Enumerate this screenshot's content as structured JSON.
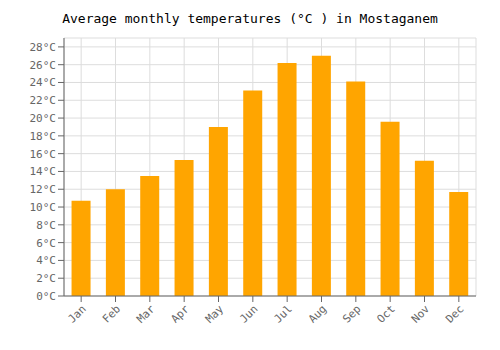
{
  "chart_data": {
    "type": "bar",
    "title": "Average monthly temperatures (°C ) in Mostaganem",
    "categories": [
      "Jan",
      "Feb",
      "Mar",
      "Apr",
      "May",
      "Jun",
      "Jul",
      "Aug",
      "Sep",
      "Oct",
      "Nov",
      "Dec"
    ],
    "values": [
      10.7,
      12.0,
      13.5,
      15.3,
      19.0,
      23.1,
      26.2,
      27.0,
      24.1,
      19.6,
      15.2,
      11.7
    ],
    "color": "#FFA500",
    "ylim": [
      0,
      29
    ],
    "yticks": [
      {
        "value": 0,
        "label": "0°C"
      },
      {
        "value": 2,
        "label": "2°C"
      },
      {
        "value": 4,
        "label": "4°C"
      },
      {
        "value": 6,
        "label": "6°C"
      },
      {
        "value": 8,
        "label": "8°C"
      },
      {
        "value": 10,
        "label": "10°C"
      },
      {
        "value": 12,
        "label": "12°C"
      },
      {
        "value": 14,
        "label": "14°C"
      },
      {
        "value": 16,
        "label": "16°C"
      },
      {
        "value": 18,
        "label": "18°C"
      },
      {
        "value": 20,
        "label": "20°C"
      },
      {
        "value": 22,
        "label": "22°C"
      },
      {
        "value": 24,
        "label": "24°C"
      },
      {
        "value": 26,
        "label": "26°C"
      },
      {
        "value": 28,
        "label": "28°C"
      }
    ],
    "grid": true
  }
}
